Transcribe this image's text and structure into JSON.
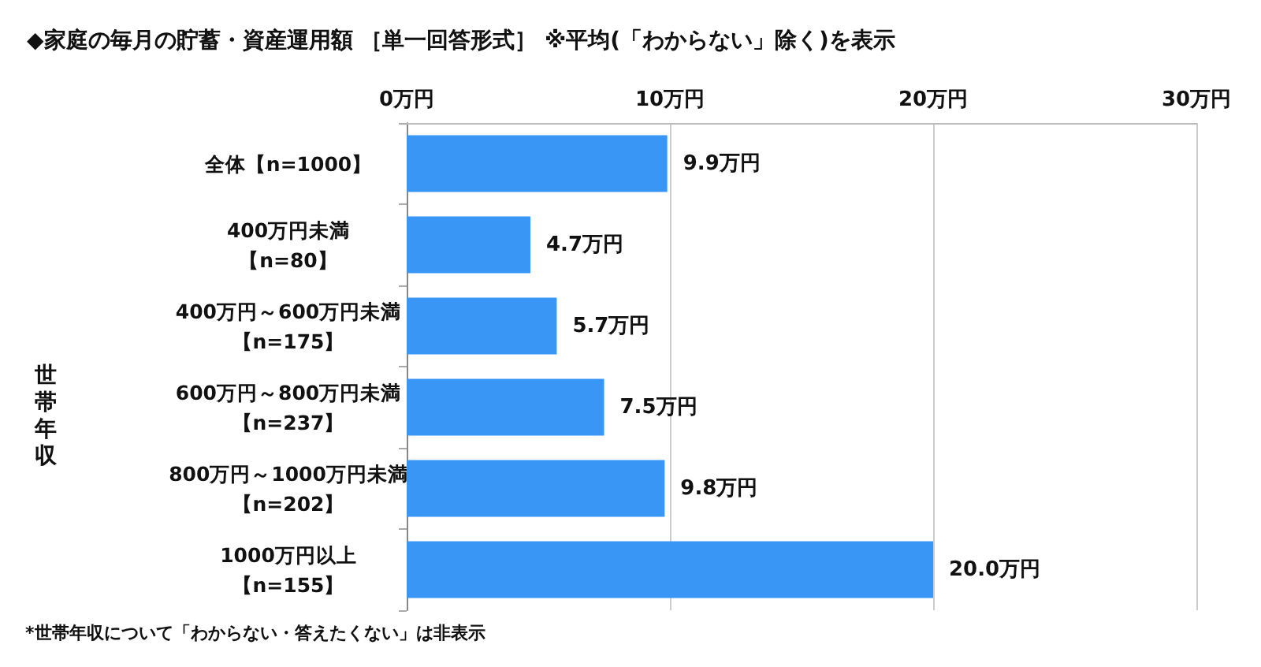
{
  "chart_data": {
    "type": "bar",
    "orientation": "horizontal",
    "title": "◆家庭の毎月の貯蓄・資産運用額 ［単一回答形式］ ※平均(「わからない」除く)を表示",
    "categories": [
      "全体【n=1000】",
      "400万円未満【n=80】",
      "400万円～600万円未満【n=175】",
      "600万円～800万円未満【n=237】",
      "800万円～1000万円未満【n=202】",
      "1000万円以上【n=155】"
    ],
    "values": [
      9.9,
      4.7,
      5.7,
      7.5,
      9.8,
      20.0
    ],
    "value_labels": [
      "9.9万円",
      "4.7万円",
      "5.7万円",
      "7.5万円",
      "9.8万円",
      "20.0万円"
    ],
    "color": "#3a96f5",
    "xlim": [
      0,
      30
    ],
    "xticks": [
      {
        "value": 0,
        "label": "0万円"
      },
      {
        "value": 10,
        "label": "10万円"
      },
      {
        "value": 20,
        "label": "20万円"
      },
      {
        "value": 30,
        "label": "30万円"
      }
    ],
    "grid": "x",
    "annotations": [
      "世帯年収",
      "*世帯年収について「わからない・答えたくない」は非表示"
    ]
  }
}
